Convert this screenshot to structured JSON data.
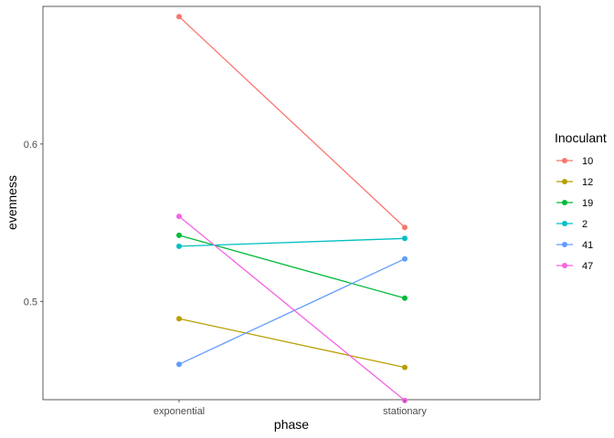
{
  "chart_data": {
    "type": "line",
    "title": "",
    "xlabel": "phase",
    "ylabel": "evenness",
    "categories": [
      "exponential",
      "stationary"
    ],
    "ylim": [
      0.4375,
      0.6875
    ],
    "yticks": [
      0.5,
      0.6
    ],
    "ytick_labels": [
      "0.5",
      "0.6"
    ],
    "grid": false,
    "legend": {
      "title": "Inoculant",
      "position": "right"
    },
    "series": [
      {
        "name": "10",
        "color": "#F8766D",
        "values": [
          0.681,
          0.547
        ]
      },
      {
        "name": "12",
        "color": "#B79F00",
        "values": [
          0.489,
          0.458
        ]
      },
      {
        "name": "19",
        "color": "#00BA38",
        "values": [
          0.542,
          0.502
        ]
      },
      {
        "name": "2",
        "color": "#00BFC4",
        "values": [
          0.535,
          0.54
        ]
      },
      {
        "name": "41",
        "color": "#619CFF",
        "values": [
          0.46,
          0.527
        ]
      },
      {
        "name": "47",
        "color": "#F564E3",
        "values": [
          0.554,
          0.437
        ]
      }
    ]
  }
}
